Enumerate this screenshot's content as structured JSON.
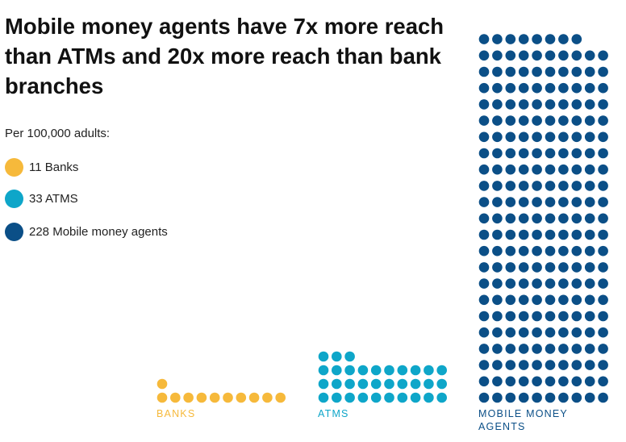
{
  "chart_data": {
    "type": "dot",
    "title": "Mobile money agents have 7x more reach than ATMs and 20x more reach than bank branches",
    "subtitle": "Per 100,000 adults:",
    "legend": [
      "11 Banks",
      "33 ATMS",
      "228 Mobile money agents"
    ],
    "categories": [
      "BANKS",
      "ATMS",
      "MOBILE MONEY AGENTS"
    ],
    "values": [
      11,
      33,
      228
    ],
    "colors": [
      "#f6b93b",
      "#0ea6c9",
      "#0b4f87"
    ]
  }
}
